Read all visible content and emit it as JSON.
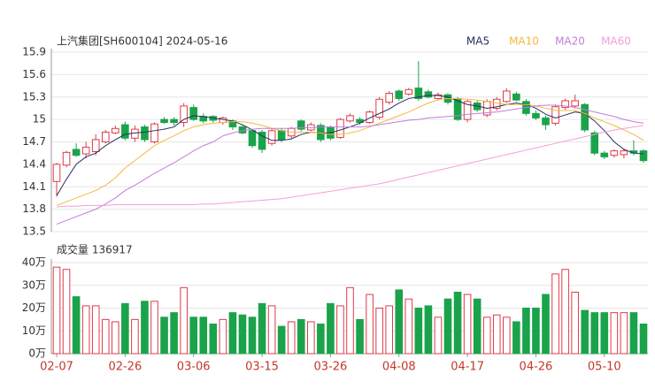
{
  "chart_data": [
    {
      "type": "candlestick",
      "title": "上汽集团[SH600104] 2024-05-16",
      "categories": [
        "02-07",
        null,
        null,
        null,
        null,
        null,
        null,
        "02-26",
        null,
        null,
        null,
        null,
        null,
        null,
        "03-06",
        null,
        null,
        null,
        null,
        null,
        null,
        "03-15",
        null,
        null,
        null,
        null,
        null,
        null,
        "03-26",
        null,
        null,
        null,
        null,
        null,
        null,
        "04-08",
        null,
        null,
        null,
        null,
        null,
        null,
        "04-17",
        null,
        null,
        null,
        null,
        null,
        null,
        "04-26",
        null,
        null,
        null,
        null,
        null,
        null,
        "05-10",
        null,
        null,
        null,
        null
      ],
      "open": [
        14.17,
        14.39,
        14.6,
        14.54,
        14.57,
        14.7,
        14.82,
        14.93,
        14.75,
        14.9,
        14.7,
        15.0,
        15.0,
        14.96,
        15.16,
        15.04,
        15.04,
        14.96,
        14.98,
        14.9,
        14.85,
        14.83,
        14.68,
        14.85,
        14.78,
        14.98,
        14.86,
        14.92,
        14.89,
        14.76,
        14.98,
        15.0,
        14.96,
        15.03,
        15.23,
        15.38,
        15.34,
        15.42,
        15.37,
        15.28,
        15.33,
        15.28,
        15.0,
        15.22,
        15.06,
        15.15,
        15.24,
        15.34,
        15.24,
        15.08,
        15.02,
        14.95,
        15.16,
        15.18,
        15.2,
        14.82,
        14.55,
        14.52,
        14.53,
        14.58,
        14.58
      ],
      "close": [
        14.4,
        14.56,
        14.52,
        14.63,
        14.73,
        14.83,
        14.88,
        14.75,
        14.87,
        14.73,
        14.94,
        14.96,
        14.96,
        15.18,
        15.0,
        14.98,
        14.99,
        15.02,
        14.9,
        14.82,
        14.65,
        14.6,
        14.85,
        14.73,
        14.88,
        14.87,
        14.93,
        14.73,
        14.75,
        15.0,
        15.05,
        14.96,
        15.1,
        15.27,
        15.35,
        15.28,
        15.4,
        15.28,
        15.3,
        15.33,
        15.23,
        15.0,
        15.24,
        15.13,
        15.24,
        15.27,
        15.38,
        15.26,
        15.08,
        15.02,
        14.93,
        15.17,
        15.25,
        15.25,
        14.86,
        14.55,
        14.5,
        14.58,
        14.58,
        14.55,
        14.45
      ],
      "high": [
        14.42,
        14.58,
        14.68,
        14.7,
        14.8,
        14.86,
        14.92,
        14.97,
        14.92,
        14.93,
        14.96,
        15.03,
        15.03,
        15.22,
        15.2,
        15.08,
        15.06,
        15.04,
        15.0,
        14.92,
        14.87,
        14.86,
        14.88,
        14.88,
        14.9,
        15.0,
        14.96,
        14.95,
        14.92,
        15.02,
        15.08,
        15.03,
        15.12,
        15.3,
        15.38,
        15.4,
        15.42,
        15.78,
        15.4,
        15.36,
        15.35,
        15.3,
        15.26,
        15.25,
        15.27,
        15.3,
        15.42,
        15.37,
        15.27,
        15.12,
        15.05,
        15.2,
        15.28,
        15.33,
        15.22,
        14.85,
        14.58,
        14.6,
        14.61,
        14.72,
        14.6
      ],
      "low": [
        13.97,
        14.36,
        14.5,
        14.48,
        14.52,
        14.68,
        14.8,
        14.72,
        14.7,
        14.7,
        14.68,
        14.94,
        14.92,
        14.9,
        14.98,
        14.95,
        14.96,
        14.93,
        14.86,
        14.8,
        14.62,
        14.55,
        14.65,
        14.7,
        14.75,
        14.84,
        14.84,
        14.7,
        14.72,
        14.74,
        14.96,
        14.93,
        14.94,
        15.0,
        15.2,
        15.25,
        15.32,
        15.25,
        15.28,
        15.26,
        15.2,
        14.98,
        14.96,
        15.1,
        15.03,
        15.12,
        15.22,
        15.24,
        15.05,
        14.99,
        14.86,
        14.92,
        15.13,
        15.15,
        14.83,
        14.52,
        14.47,
        14.49,
        14.48,
        14.52,
        14.42
      ],
      "up_color": "#e03a4a",
      "down_color": "#1aa34a",
      "series": [
        {
          "name": "MA5",
          "color": "#27305e",
          "values": [
            13.98,
            14.2,
            14.4,
            14.5,
            14.55,
            14.65,
            14.73,
            14.8,
            14.82,
            14.83,
            14.85,
            14.87,
            14.9,
            15.0,
            15.05,
            15.04,
            15.02,
            15.0,
            14.98,
            14.93,
            14.86,
            14.78,
            14.72,
            14.72,
            14.74,
            14.8,
            14.83,
            14.82,
            14.82,
            14.86,
            14.9,
            14.95,
            15.02,
            15.08,
            15.14,
            15.22,
            15.28,
            15.3,
            15.32,
            15.32,
            15.3,
            15.25,
            15.2,
            15.18,
            15.15,
            15.17,
            15.2,
            15.22,
            15.2,
            15.15,
            15.07,
            15.02,
            15.06,
            15.1,
            15.08,
            14.98,
            14.85,
            14.7,
            14.6,
            14.55,
            14.54
          ]
        },
        {
          "name": "MA10",
          "color": "#f5b840",
          "values": [
            13.85,
            13.9,
            13.95,
            14.0,
            14.05,
            14.12,
            14.22,
            14.35,
            14.45,
            14.55,
            14.65,
            14.72,
            14.78,
            14.85,
            14.9,
            14.93,
            14.95,
            14.96,
            14.97,
            14.97,
            14.95,
            14.92,
            14.88,
            14.85,
            14.83,
            14.83,
            14.83,
            14.82,
            14.8,
            14.8,
            14.82,
            14.85,
            14.9,
            14.95,
            15.0,
            15.05,
            15.1,
            15.16,
            15.22,
            15.26,
            15.28,
            15.28,
            15.27,
            15.26,
            15.24,
            15.22,
            15.2,
            15.2,
            15.2,
            15.18,
            15.15,
            15.12,
            15.12,
            15.12,
            15.08,
            15.02,
            14.97,
            14.92,
            14.86,
            14.8,
            14.72
          ]
        },
        {
          "name": "MA20",
          "color": "#c27edb",
          "values": [
            13.6,
            13.65,
            13.7,
            13.75,
            13.8,
            13.87,
            13.95,
            14.05,
            14.12,
            14.2,
            14.28,
            14.35,
            14.42,
            14.5,
            14.58,
            14.65,
            14.7,
            14.78,
            14.82,
            14.85,
            14.87,
            14.88,
            14.88,
            14.88,
            14.88,
            14.89,
            14.89,
            14.9,
            14.9,
            14.9,
            14.9,
            14.9,
            14.91,
            14.93,
            14.95,
            14.97,
            14.99,
            15.0,
            15.02,
            15.03,
            15.04,
            15.05,
            15.07,
            15.08,
            15.09,
            15.1,
            15.12,
            15.14,
            15.16,
            15.18,
            15.19,
            15.19,
            15.18,
            15.16,
            15.13,
            15.1,
            15.07,
            15.04,
            15.0,
            14.97,
            14.95
          ]
        },
        {
          "name": "MA60",
          "color": "#f59ed8",
          "values": [
            13.83,
            13.84,
            13.84,
            13.85,
            13.85,
            13.85,
            13.86,
            13.86,
            13.86,
            13.86,
            13.86,
            13.86,
            13.86,
            13.86,
            13.86,
            13.87,
            13.87,
            13.88,
            13.89,
            13.9,
            13.91,
            13.92,
            13.93,
            13.94,
            13.96,
            13.98,
            14.0,
            14.02,
            14.04,
            14.06,
            14.08,
            14.1,
            14.12,
            14.14,
            14.17,
            14.2,
            14.23,
            14.26,
            14.29,
            14.32,
            14.35,
            14.38,
            14.41,
            14.44,
            14.47,
            14.5,
            14.53,
            14.56,
            14.59,
            14.62,
            14.65,
            14.68,
            14.71,
            14.74,
            14.77,
            14.8,
            14.83,
            14.86,
            14.88,
            14.9,
            14.92
          ]
        }
      ],
      "ylim": [
        13.5,
        15.9
      ],
      "yticks": [
        15.9,
        15.6,
        15.3,
        15,
        14.7,
        14.4,
        14.1,
        13.8,
        13.5
      ],
      "grid": true
    },
    {
      "type": "bar",
      "title": "成交量 136917",
      "values": [
        38,
        37,
        25,
        21,
        21,
        15,
        14,
        22,
        15,
        23,
        23,
        16,
        18,
        29,
        16,
        16,
        13,
        15,
        18,
        17,
        16,
        22,
        21,
        12,
        14,
        15,
        14,
        13,
        22,
        21,
        29,
        15,
        26,
        20,
        21,
        28,
        24,
        20,
        21,
        16,
        24,
        27,
        26,
        24,
        16,
        17,
        16,
        14,
        20,
        20,
        26,
        35,
        37,
        27,
        19,
        18,
        18,
        18,
        18,
        18,
        13
      ],
      "ylim": [
        0,
        40
      ],
      "yticks": [
        {
          "value": 40,
          "label": "40万"
        },
        {
          "value": 30,
          "label": "30万"
        },
        {
          "value": 20,
          "label": "20万"
        },
        {
          "value": 10,
          "label": "10万"
        },
        {
          "value": 0,
          "label": "0万"
        }
      ],
      "grid": true
    }
  ]
}
